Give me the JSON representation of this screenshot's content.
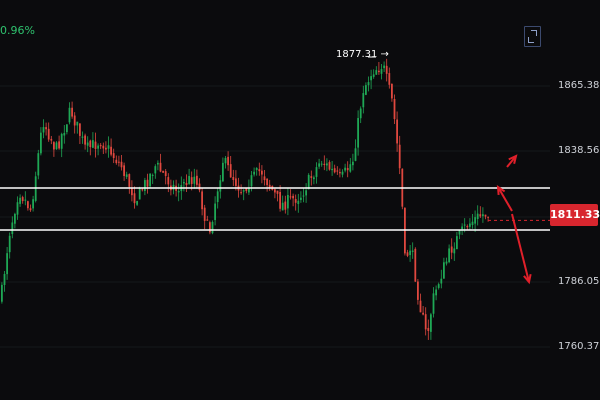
{
  "header": {
    "change_percent": "0.96%"
  },
  "toolbar": {
    "fullscreen_icon": "fullscreen-icon"
  },
  "price_axis": {
    "labels": [
      "1865.38",
      "1838.56",
      "1811.33",
      "1786.05",
      "1760.37"
    ],
    "values": [
      1865.38,
      1838.56,
      1811.33,
      1786.05,
      1760.37
    ],
    "current_price": "1811.33",
    "current_value": 1811.33
  },
  "annotations": {
    "peak_label": "1877.31 →",
    "peak_value": 1877.31
  },
  "colors": {
    "up": "#1fa855",
    "down": "#e0483f",
    "background": "#0b0b0d",
    "level_line": "#ffffff",
    "arrow": "#e0202a",
    "badge": "#d8262e"
  }
}
